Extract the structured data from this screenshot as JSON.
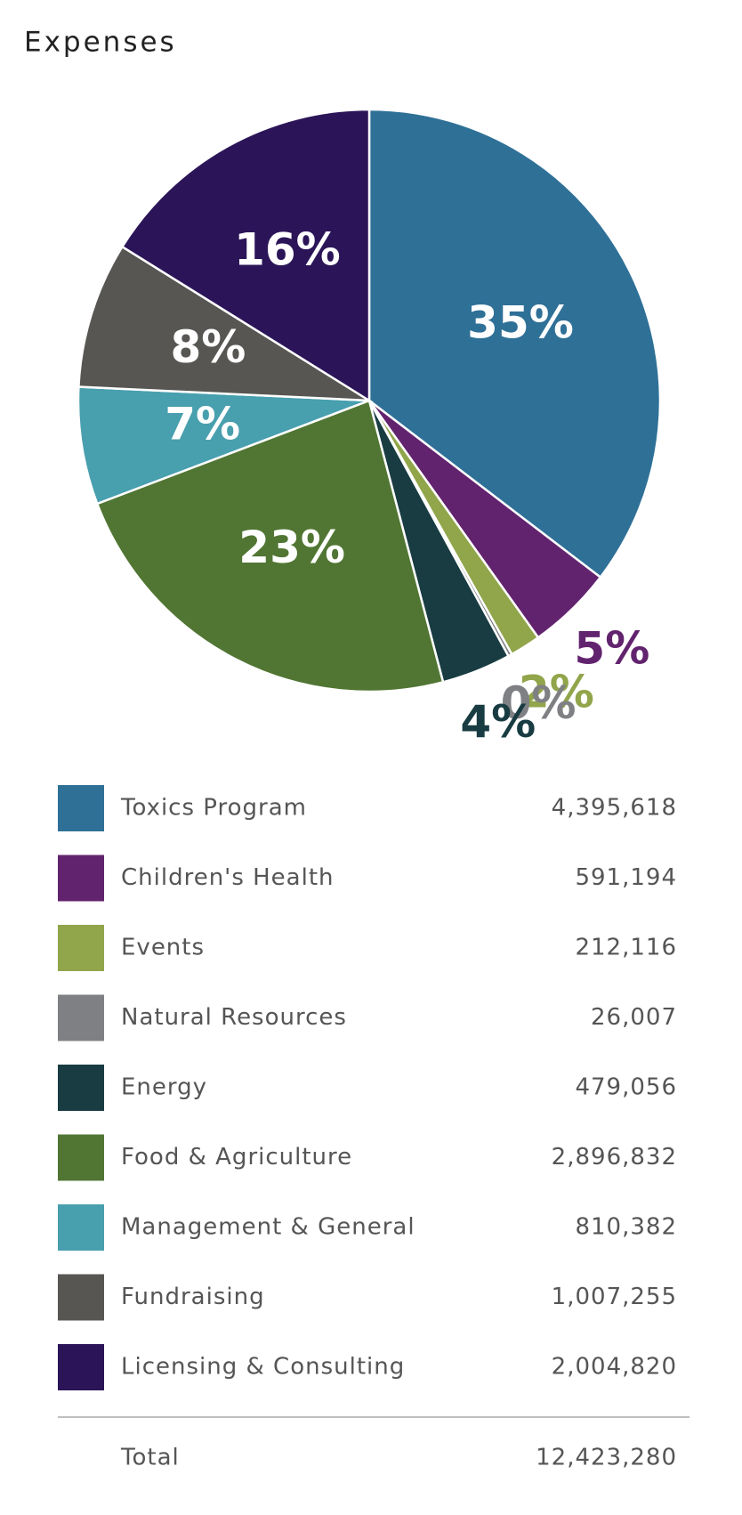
{
  "chart_data": {
    "type": "pie",
    "title": "Expenses",
    "categories": [
      "Toxics Program",
      "Children's Health",
      "Events",
      "Natural Resources",
      "Energy",
      "Food & Agriculture",
      "Management & General",
      "Fundraising",
      "Licensing & Consulting"
    ],
    "values": [
      4395618,
      591194,
      212116,
      26007,
      479056,
      2896832,
      810382,
      1007255,
      2004820
    ],
    "value_labels": [
      "4,395,618",
      "591,194",
      "212,116",
      "26,007",
      "479,056",
      "2,896,832",
      "810,382",
      "1,007,255",
      "2,004,820"
    ],
    "percents": [
      35,
      5,
      2,
      0,
      4,
      23,
      7,
      8,
      16
    ],
    "percent_labels": [
      "35%",
      "5%",
      "2%",
      "0%",
      "4%",
      "23%",
      "7%",
      "8%",
      "16%"
    ],
    "colors": [
      "#2f7097",
      "#62236e",
      "#91a54b",
      "#7f8083",
      "#183c42",
      "#517633",
      "#489fae",
      "#575653",
      "#2b1558"
    ],
    "total_text": "Total",
    "total": 12423280,
    "total_label": "12,423,280"
  }
}
